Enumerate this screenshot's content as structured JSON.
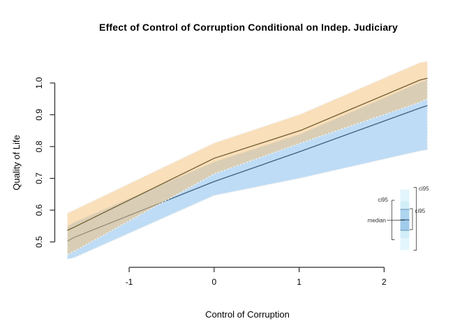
{
  "chart_data": {
    "type": "line",
    "title": "Effect of Control of Corruption Conditional on Indep. Judiciary",
    "xlabel": "Control of Corruption",
    "ylabel": "Quality of Life",
    "x_ticks": [
      -1,
      0,
      1,
      2
    ],
    "x_tick_labels": [
      "-1",
      "0",
      "1",
      "2"
    ],
    "y_ticks": [
      0.5,
      0.6,
      0.7,
      0.8,
      0.9,
      1.0
    ],
    "y_tick_labels": [
      "0.5",
      "0.6",
      "0.7",
      "0.8",
      "0.9",
      "1.0"
    ],
    "xlim": [
      -1.727,
      2.51
    ],
    "ylim": [
      0.441,
      1.092
    ],
    "grid": false,
    "x": [
      -1.73,
      -1.65,
      0.0,
      1.02,
      2.42,
      2.51
    ],
    "series": [
      {
        "name": "blue-band",
        "median": [
          0.502,
          0.514,
          0.69,
          0.785,
          0.921,
          0.929
        ],
        "ci95_lower": [
          0.446,
          0.45,
          0.646,
          0.701,
          0.786,
          0.79
        ],
        "ci95_upper": [
          0.549,
          0.561,
          0.752,
          0.84,
          1.002,
          1.01
        ],
        "fill_color": "#BEDCF5",
        "line_color": "#3D5D7C"
      },
      {
        "name": "orange-band",
        "median": [
          0.536,
          0.546,
          0.763,
          0.851,
          1.009,
          1.015
        ],
        "ci95_lower": [
          0.459,
          0.47,
          0.714,
          0.811,
          0.939,
          0.951
        ],
        "ci95_upper": [
          0.59,
          0.6,
          0.811,
          0.902,
          1.064,
          1.068
        ],
        "fill_color": "rgba(243,191,117,0.5)",
        "line_color": "#6F5B2F"
      }
    ],
    "band_edge_color": "#EFEFEF",
    "axis_color": "#2B2B2B",
    "legend": {
      "position": "bottom-right-inset",
      "labels": {
        "ci95_outer": "ci95",
        "ci95_left": "ci95",
        "ci95_inner": "ci95",
        "median": "median"
      },
      "colors": {
        "palest": "#E3F5FC",
        "light": "#D2EEF9",
        "mid_upper": "#AED5F0",
        "mid_lower": "#A0CBEB",
        "mid_border": "#5E87A8",
        "median_line": "#3D5D7C",
        "bracket": "#555555"
      }
    }
  }
}
